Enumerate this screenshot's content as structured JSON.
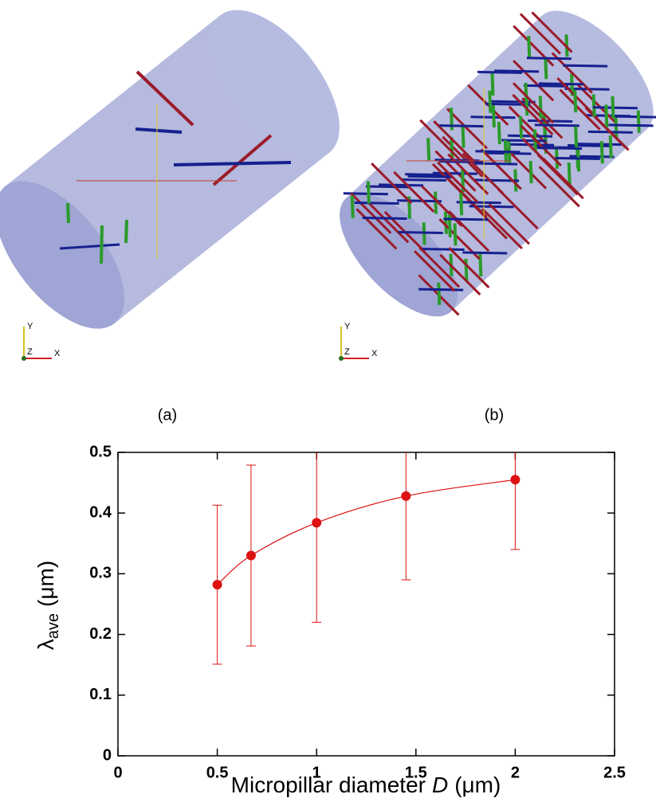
{
  "panels": {
    "a": {
      "caption": "(a)",
      "axes": [
        "X",
        "Y",
        "Z"
      ]
    },
    "b": {
      "caption": "(b)",
      "axes": [
        "X",
        "Y",
        "Z"
      ]
    }
  },
  "chart_data": {
    "type": "line",
    "xlabel": {
      "text": "Micropillar diameter",
      "symbol": "D",
      "unit": "(μm)"
    },
    "ylabel": {
      "symbol": "λ",
      "subscript": "ave",
      "unit": "(μm)"
    },
    "x": [
      0.5,
      0.67,
      1.0,
      1.45,
      2.0
    ],
    "series": [
      {
        "color": "#dd1111",
        "values": [
          0.282,
          0.33,
          0.384,
          0.428,
          0.455
        ],
        "errors": [
          0.131,
          0.149,
          0.164,
          0.138,
          0.115
        ]
      }
    ],
    "xlim": [
      0,
      2.5
    ],
    "xticks": [
      0,
      0.5,
      1,
      1.5,
      2,
      2.5
    ],
    "ylim": [
      0,
      0.5
    ],
    "yticks": [
      0,
      0.1,
      0.2,
      0.3,
      0.4,
      0.5
    ]
  }
}
